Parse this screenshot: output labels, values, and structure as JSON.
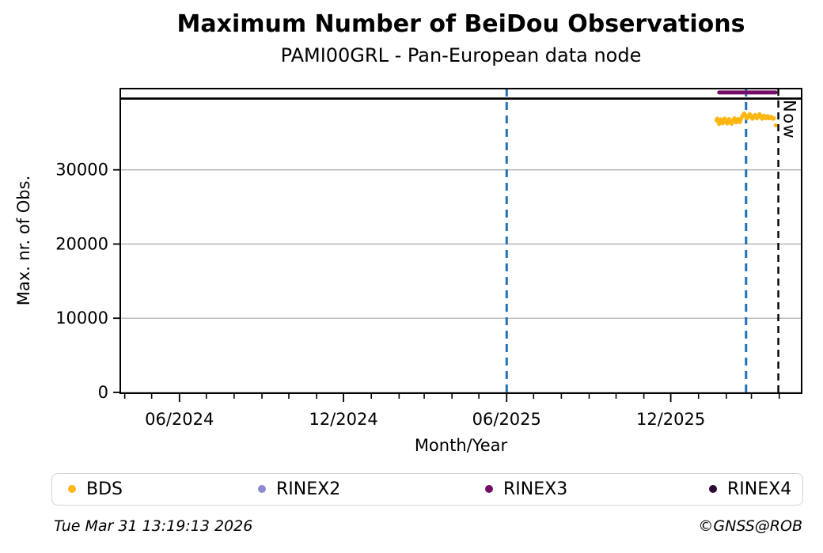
{
  "header": {
    "title": "Maximum Number of BeiDou Observations",
    "subtitle": "PAMI00GRL - Pan-European data node"
  },
  "chart_data": {
    "type": "scatter",
    "title": "Maximum Number of BeiDou Observations",
    "subtitle": "PAMI00GRL - Pan-European data node",
    "xlabel": "Month/Year",
    "ylabel": "Max. nr. of Obs.",
    "x_domain": [
      "2024-03-27",
      "2026-04-26"
    ],
    "ylim": [
      0,
      40950
    ],
    "y_ticks": [
      0,
      10000,
      20000,
      30000
    ],
    "x_major_ticks": [
      {
        "date": "2024-06-01",
        "label": "06/2024"
      },
      {
        "date": "2024-12-01",
        "label": "12/2024"
      },
      {
        "date": "2025-06-01",
        "label": "06/2025"
      },
      {
        "date": "2025-12-01",
        "label": "12/2025"
      }
    ],
    "grid": {
      "horizontal": true,
      "vertical": false,
      "color": "#b0b0b0"
    },
    "legend_position": "bottom",
    "reference_line": {
      "name": "theoretical-maximum",
      "value": 39600,
      "color": "#000000",
      "style": "solid"
    },
    "event_lines": [
      {
        "date": "2025-06-01",
        "color": "#2072b5",
        "style": "dashed"
      },
      {
        "date": "2026-02-23",
        "color": "#2072b5",
        "style": "dashed"
      }
    ],
    "now_line": {
      "date": "2026-03-31",
      "label": "Now",
      "color": "#000000",
      "style": "dashed"
    },
    "series": [
      {
        "name": "BDS",
        "type": "scatter",
        "color": "#fcb713",
        "points": [
          [
            "2026-01-21",
            36700
          ],
          [
            "2026-01-22",
            36900
          ],
          [
            "2026-01-23",
            36450
          ],
          [
            "2026-01-24",
            36200
          ],
          [
            "2026-01-25",
            36500
          ],
          [
            "2026-01-26",
            36800
          ],
          [
            "2026-01-27",
            36600
          ],
          [
            "2026-01-28",
            36300
          ],
          [
            "2026-01-29",
            36600
          ],
          [
            "2026-01-30",
            36900
          ],
          [
            "2026-01-31",
            36700
          ],
          [
            "2026-02-01",
            36400
          ],
          [
            "2026-02-02",
            36250
          ],
          [
            "2026-02-03",
            36550
          ],
          [
            "2026-02-04",
            36850
          ],
          [
            "2026-02-05",
            36650
          ],
          [
            "2026-02-06",
            36350
          ],
          [
            "2026-02-07",
            36200
          ],
          [
            "2026-02-08",
            36500
          ],
          [
            "2026-02-09",
            36800
          ],
          [
            "2026-02-10",
            36950
          ],
          [
            "2026-02-11",
            36650
          ],
          [
            "2026-02-12",
            36400
          ],
          [
            "2026-02-13",
            36600
          ],
          [
            "2026-02-14",
            36850
          ],
          [
            "2026-02-15",
            36700
          ],
          [
            "2026-02-16",
            36450
          ],
          [
            "2026-02-17",
            36700
          ],
          [
            "2026-02-18",
            37000
          ],
          [
            "2026-02-19",
            37250
          ],
          [
            "2026-02-20",
            37450
          ],
          [
            "2026-02-21",
            37600
          ],
          [
            "2026-02-22",
            37400
          ],
          [
            "2026-02-23",
            37150
          ],
          [
            "2026-02-24",
            36950
          ],
          [
            "2026-02-25",
            37100
          ],
          [
            "2026-02-26",
            37300
          ],
          [
            "2026-02-27",
            37500
          ],
          [
            "2026-02-28",
            37350
          ],
          [
            "2026-03-01",
            37100
          ],
          [
            "2026-03-02",
            36900
          ],
          [
            "2026-03-03",
            37050
          ],
          [
            "2026-03-04",
            37250
          ],
          [
            "2026-03-05",
            37400
          ],
          [
            "2026-03-06",
            37200
          ],
          [
            "2026-03-07",
            36950
          ],
          [
            "2026-03-08",
            37100
          ],
          [
            "2026-03-09",
            37350
          ],
          [
            "2026-03-10",
            37500
          ],
          [
            "2026-03-11",
            37300
          ],
          [
            "2026-03-12",
            37050
          ],
          [
            "2026-03-13",
            36900
          ],
          [
            "2026-03-14",
            37100
          ],
          [
            "2026-03-15",
            37300
          ],
          [
            "2026-03-16",
            37150
          ],
          [
            "2026-03-17",
            36950
          ],
          [
            "2026-03-18",
            37100
          ],
          [
            "2026-03-19",
            37250
          ],
          [
            "2026-03-20",
            37100
          ],
          [
            "2026-03-21",
            36950
          ],
          [
            "2026-03-22",
            37050
          ],
          [
            "2026-03-23",
            37150
          ],
          [
            "2026-03-24",
            37000
          ],
          [
            "2026-03-25",
            36900
          ],
          [
            "2026-03-26",
            36950
          ],
          [
            "2026-03-28",
            36000
          ]
        ]
      },
      {
        "name": "RINEX2",
        "type": "scatter",
        "color": "#8d8ad4",
        "points": []
      },
      {
        "name": "RINEX3",
        "type": "segment",
        "color": "#750d68",
        "start": "2026-01-24",
        "end": "2026-03-28",
        "value": 40430
      },
      {
        "name": "RINEX4",
        "type": "scatter",
        "color": "#2e0a32",
        "points": []
      }
    ]
  },
  "legend": {
    "items": [
      {
        "label": "BDS",
        "color": "#fcb713"
      },
      {
        "label": "RINEX2",
        "color": "#8d8ad4"
      },
      {
        "label": "RINEX3",
        "color": "#750d68"
      },
      {
        "label": "RINEX4",
        "color": "#2e0a32"
      }
    ]
  },
  "footer": {
    "timestamp": "Tue Mar 31 13:19:13 2026",
    "copyright": "©GNSS@ROB"
  }
}
